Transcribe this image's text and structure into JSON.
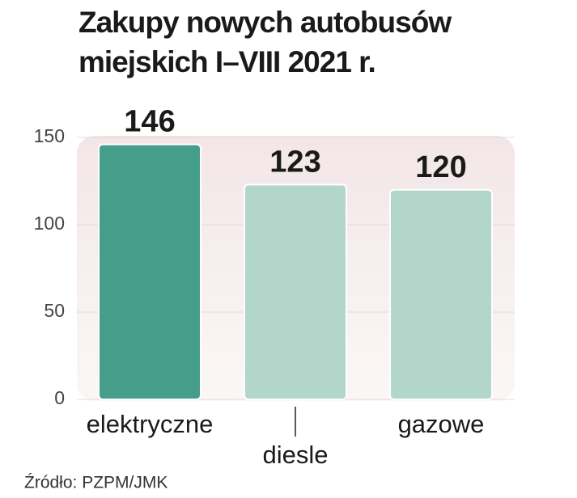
{
  "chart_data": {
    "type": "bar",
    "title": [
      "Zakupy nowych autobusów",
      "miejskich I–VIII 2021 r."
    ],
    "categories": [
      "elektryczne",
      "diesle",
      "gazowe"
    ],
    "values": [
      146,
      123,
      120
    ],
    "colors": [
      "#449e8a",
      "#b3d6cb",
      "#b3d6cb"
    ],
    "ylim": [
      0,
      150
    ],
    "yticks": [
      0,
      50,
      100,
      150
    ],
    "grid": true,
    "source": "Źródło: PZPM/JMK"
  }
}
